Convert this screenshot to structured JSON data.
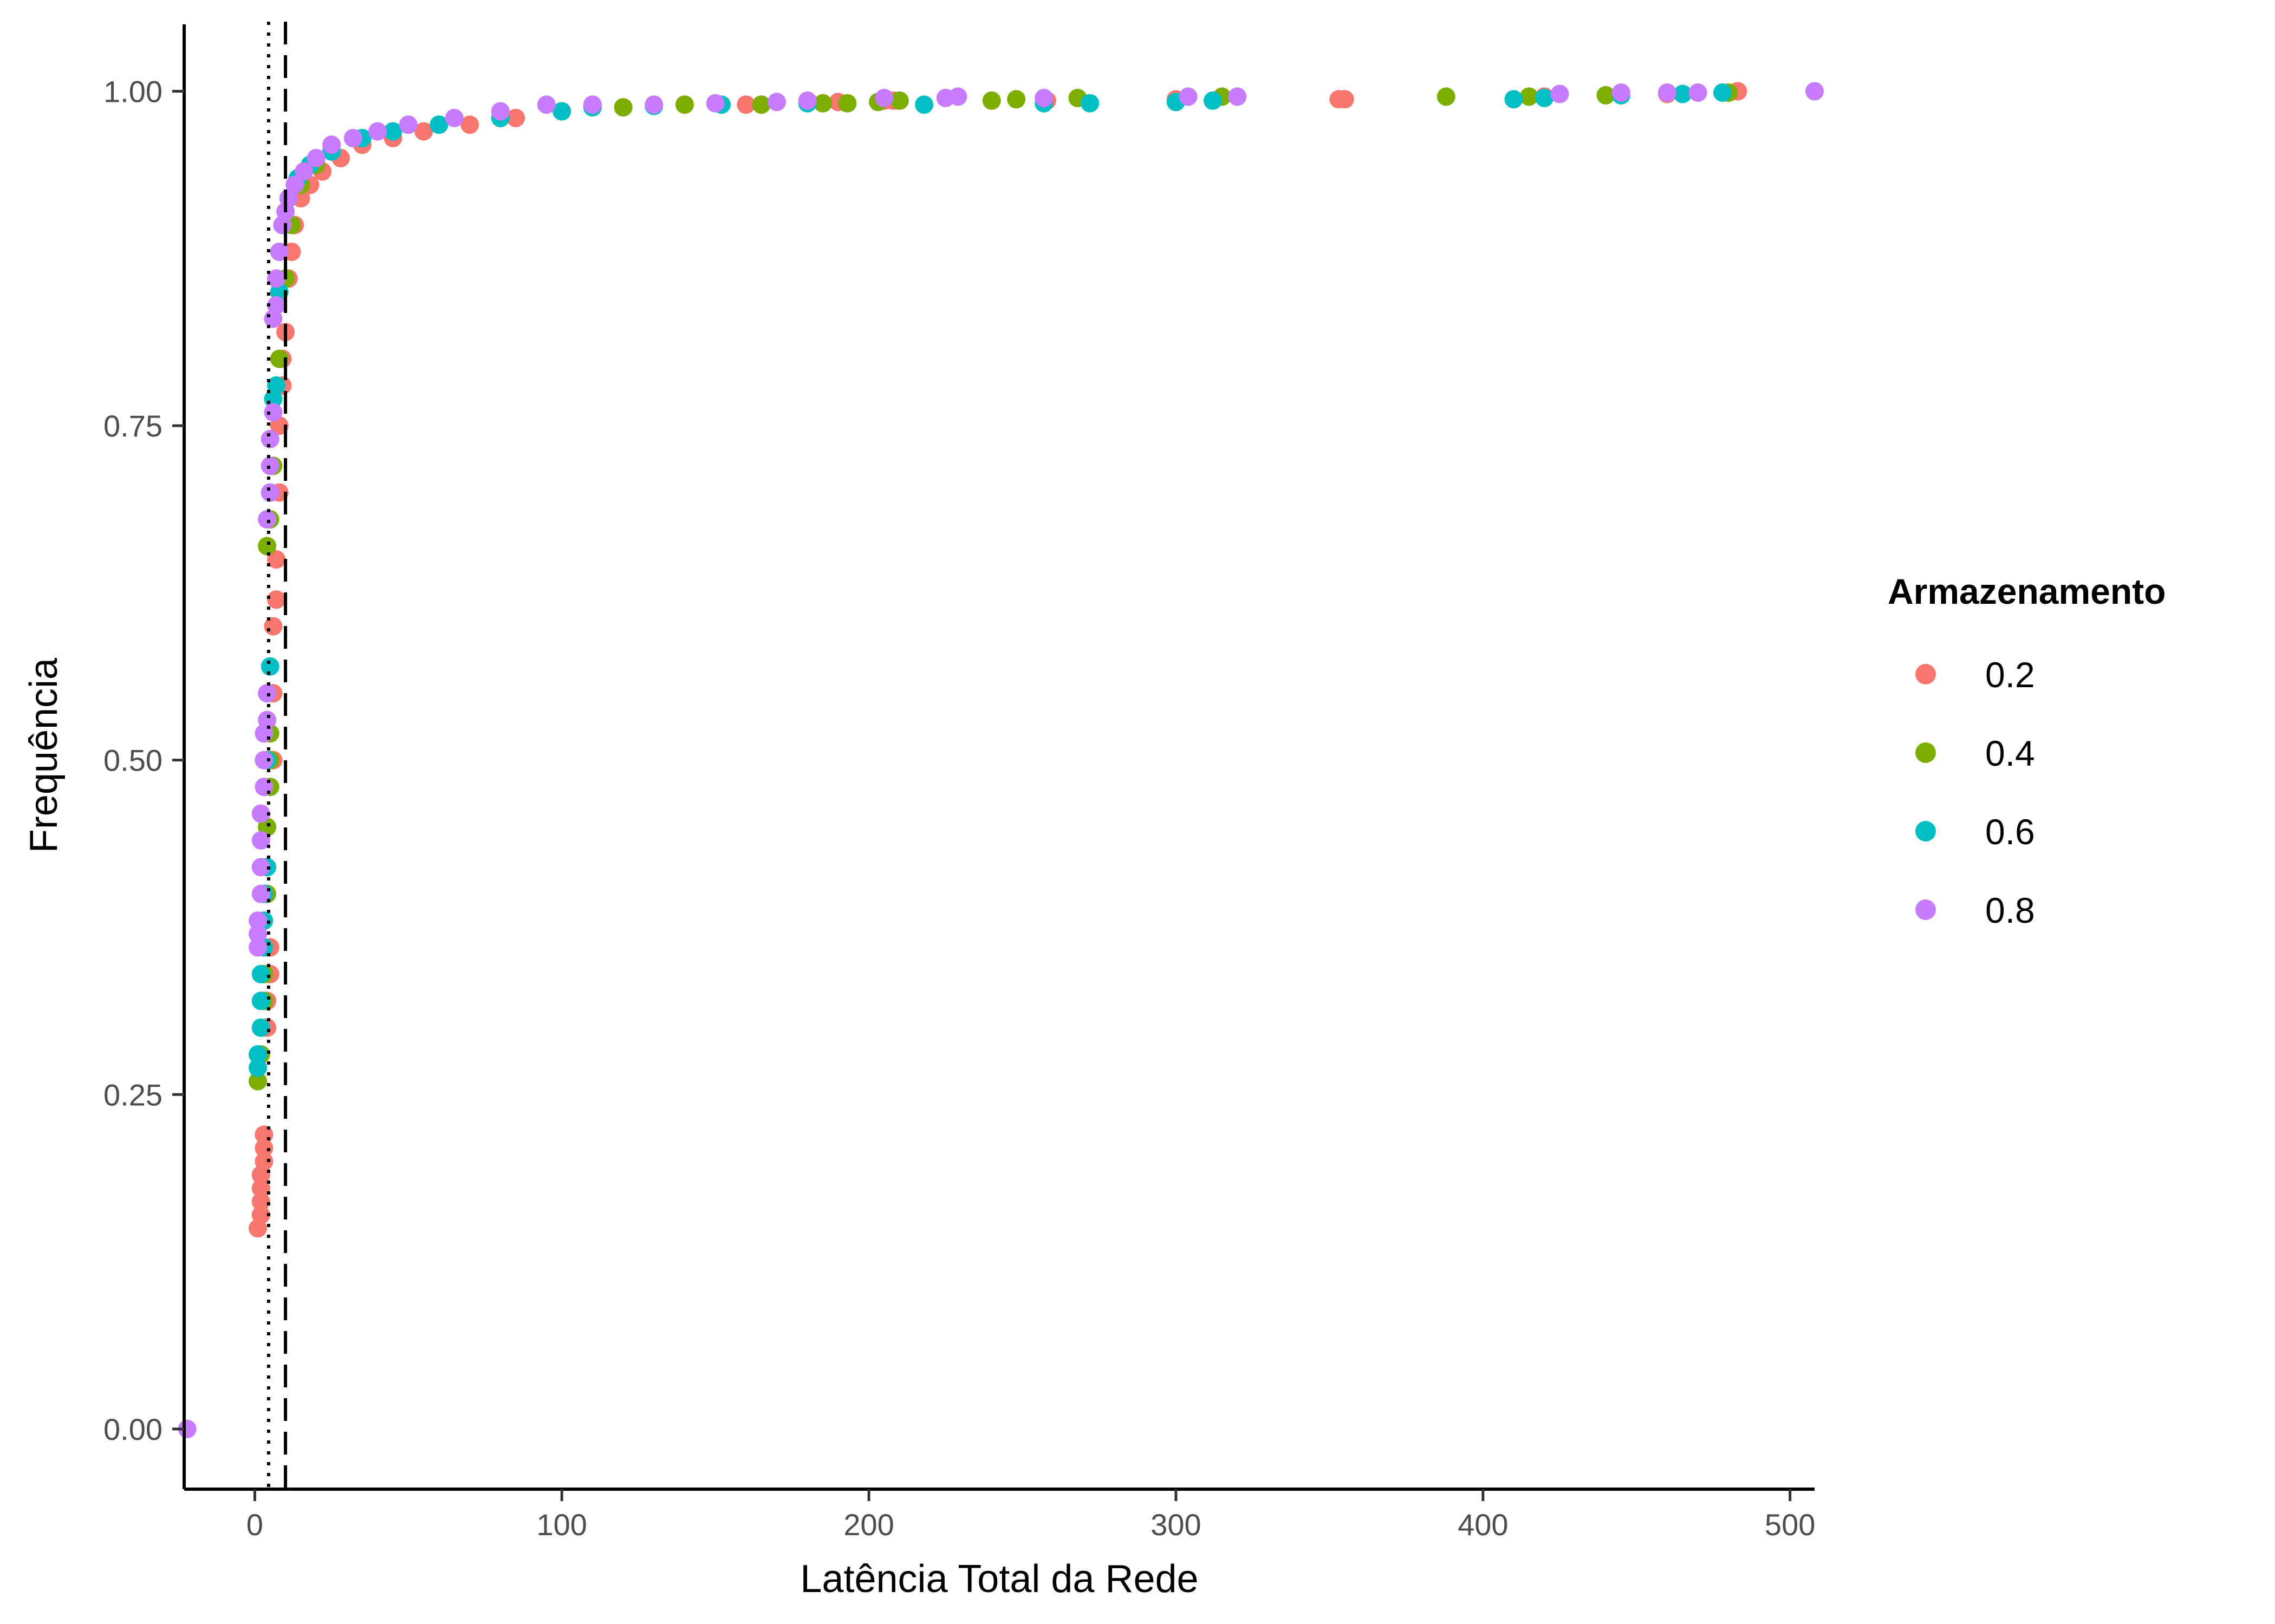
{
  "chart_data": {
    "type": "scatter",
    "title": "",
    "xlabel": "Latência Total da Rede",
    "ylabel": "Frequência",
    "xlim": [
      -23,
      508
    ],
    "ylim": [
      -0.045,
      1.05
    ],
    "x_ticks": [
      0,
      100,
      200,
      300,
      400,
      500
    ],
    "x_tick_labels": [
      "0",
      "100",
      "200",
      "300",
      "400",
      "500"
    ],
    "y_ticks": [
      0,
      0.25,
      0.5,
      0.75,
      1.0
    ],
    "y_tick_labels": [
      "0.00",
      "0.25",
      "0.50",
      "0.75",
      "1.00"
    ],
    "grid": false,
    "legend_title": "Armazenamento",
    "legend_position": "right",
    "reference_lines": [
      {
        "style": "dotted",
        "x": 4.5
      },
      {
        "style": "dashed",
        "x": 10
      }
    ],
    "series": [
      {
        "name": "0.2",
        "color": "#F8766D",
        "points": [
          [
            1,
            0.15
          ],
          [
            2,
            0.16
          ],
          [
            2,
            0.17
          ],
          [
            2,
            0.18
          ],
          [
            2,
            0.19
          ],
          [
            3,
            0.2
          ],
          [
            3,
            0.21
          ],
          [
            3,
            0.22
          ],
          [
            4,
            0.3
          ],
          [
            4,
            0.32
          ],
          [
            5,
            0.34
          ],
          [
            5,
            0.36
          ],
          [
            6,
            0.5
          ],
          [
            6,
            0.55
          ],
          [
            6,
            0.6
          ],
          [
            7,
            0.62
          ],
          [
            7,
            0.65
          ],
          [
            8,
            0.7
          ],
          [
            8,
            0.75
          ],
          [
            9,
            0.78
          ],
          [
            9,
            0.8
          ],
          [
            10,
            0.82
          ],
          [
            11,
            0.86
          ],
          [
            12,
            0.88
          ],
          [
            13,
            0.9
          ],
          [
            15,
            0.92
          ],
          [
            18,
            0.93
          ],
          [
            22,
            0.94
          ],
          [
            28,
            0.95
          ],
          [
            35,
            0.96
          ],
          [
            45,
            0.965
          ],
          [
            55,
            0.97
          ],
          [
            70,
            0.975
          ],
          [
            85,
            0.98
          ],
          [
            100,
            0.985
          ],
          [
            120,
            0.988
          ],
          [
            140,
            0.99
          ],
          [
            160,
            0.99
          ],
          [
            180,
            0.992
          ],
          [
            190,
            0.992
          ],
          [
            205,
            0.993
          ],
          [
            208,
            0.993
          ],
          [
            258,
            0.993
          ],
          [
            300,
            0.994
          ],
          [
            353,
            0.994
          ],
          [
            355,
            0.994
          ],
          [
            420,
            0.996
          ],
          [
            440,
            0.997
          ],
          [
            460,
            0.998
          ],
          [
            483,
            1.0
          ]
        ]
      },
      {
        "name": "0.4",
        "color": "#7CAE00",
        "points": [
          [
            1,
            0.26
          ],
          [
            2,
            0.28
          ],
          [
            2,
            0.3
          ],
          [
            3,
            0.32
          ],
          [
            3,
            0.34
          ],
          [
            4,
            0.4
          ],
          [
            4,
            0.45
          ],
          [
            5,
            0.48
          ],
          [
            5,
            0.5
          ],
          [
            5,
            0.52
          ],
          [
            4,
            0.66
          ],
          [
            5,
            0.68
          ],
          [
            6,
            0.72
          ],
          [
            8,
            0.8
          ],
          [
            10,
            0.86
          ],
          [
            12,
            0.9
          ],
          [
            15,
            0.93
          ],
          [
            20,
            0.945
          ],
          [
            25,
            0.955
          ],
          [
            35,
            0.965
          ],
          [
            45,
            0.97
          ],
          [
            60,
            0.975
          ],
          [
            80,
            0.98
          ],
          [
            100,
            0.985
          ],
          [
            120,
            0.988
          ],
          [
            140,
            0.99
          ],
          [
            165,
            0.99
          ],
          [
            185,
            0.991
          ],
          [
            193,
            0.991
          ],
          [
            203,
            0.992
          ],
          [
            210,
            0.993
          ],
          [
            240,
            0.993
          ],
          [
            248,
            0.994
          ],
          [
            268,
            0.995
          ],
          [
            315,
            0.996
          ],
          [
            388,
            0.996
          ],
          [
            415,
            0.996
          ],
          [
            440,
            0.997
          ],
          [
            480,
            0.999
          ]
        ]
      },
      {
        "name": "0.6",
        "color": "#00BFC4",
        "points": [
          [
            1,
            0.27
          ],
          [
            1,
            0.28
          ],
          [
            2,
            0.3
          ],
          [
            2,
            0.32
          ],
          [
            2,
            0.34
          ],
          [
            3,
            0.36
          ],
          [
            3,
            0.38
          ],
          [
            3,
            0.4
          ],
          [
            4,
            0.42
          ],
          [
            4,
            0.5
          ],
          [
            4,
            0.55
          ],
          [
            5,
            0.57
          ],
          [
            5,
            0.7
          ],
          [
            6,
            0.77
          ],
          [
            7,
            0.78
          ],
          [
            8,
            0.85
          ],
          [
            9,
            0.9
          ],
          [
            11,
            0.92
          ],
          [
            14,
            0.935
          ],
          [
            18,
            0.945
          ],
          [
            25,
            0.955
          ],
          [
            35,
            0.965
          ],
          [
            45,
            0.97
          ],
          [
            60,
            0.975
          ],
          [
            80,
            0.98
          ],
          [
            100,
            0.985
          ],
          [
            110,
            0.988
          ],
          [
            130,
            0.989
          ],
          [
            152,
            0.99
          ],
          [
            180,
            0.991
          ],
          [
            218,
            0.99
          ],
          [
            257,
            0.991
          ],
          [
            272,
            0.991
          ],
          [
            300,
            0.992
          ],
          [
            312,
            0.993
          ],
          [
            410,
            0.994
          ],
          [
            420,
            0.995
          ],
          [
            445,
            0.997
          ],
          [
            465,
            0.998
          ],
          [
            478,
            0.999
          ]
        ]
      },
      {
        "name": "0.8",
        "color": "#C77CFF",
        "points": [
          [
            -22,
            0.0
          ],
          [
            1,
            0.36
          ],
          [
            1,
            0.37
          ],
          [
            1,
            0.38
          ],
          [
            2,
            0.4
          ],
          [
            2,
            0.42
          ],
          [
            2,
            0.44
          ],
          [
            2,
            0.46
          ],
          [
            3,
            0.48
          ],
          [
            3,
            0.5
          ],
          [
            3,
            0.52
          ],
          [
            4,
            0.53
          ],
          [
            4,
            0.55
          ],
          [
            4,
            0.68
          ],
          [
            5,
            0.7
          ],
          [
            5,
            0.72
          ],
          [
            5,
            0.74
          ],
          [
            6,
            0.76
          ],
          [
            6,
            0.83
          ],
          [
            7,
            0.84
          ],
          [
            7,
            0.86
          ],
          [
            8,
            0.88
          ],
          [
            9,
            0.9
          ],
          [
            10,
            0.91
          ],
          [
            11,
            0.92
          ],
          [
            13,
            0.93
          ],
          [
            16,
            0.94
          ],
          [
            20,
            0.95
          ],
          [
            25,
            0.96
          ],
          [
            32,
            0.965
          ],
          [
            40,
            0.97
          ],
          [
            50,
            0.975
          ],
          [
            65,
            0.98
          ],
          [
            80,
            0.985
          ],
          [
            95,
            0.99
          ],
          [
            110,
            0.99
          ],
          [
            130,
            0.99
          ],
          [
            150,
            0.991
          ],
          [
            170,
            0.992
          ],
          [
            180,
            0.993
          ],
          [
            205,
            0.995
          ],
          [
            225,
            0.995
          ],
          [
            229,
            0.996
          ],
          [
            257,
            0.995
          ],
          [
            304,
            0.996
          ],
          [
            320,
            0.996
          ],
          [
            425,
            0.998
          ],
          [
            445,
            0.999
          ],
          [
            460,
            0.999
          ],
          [
            470,
            0.999
          ],
          [
            508,
            1.0
          ]
        ]
      }
    ]
  }
}
